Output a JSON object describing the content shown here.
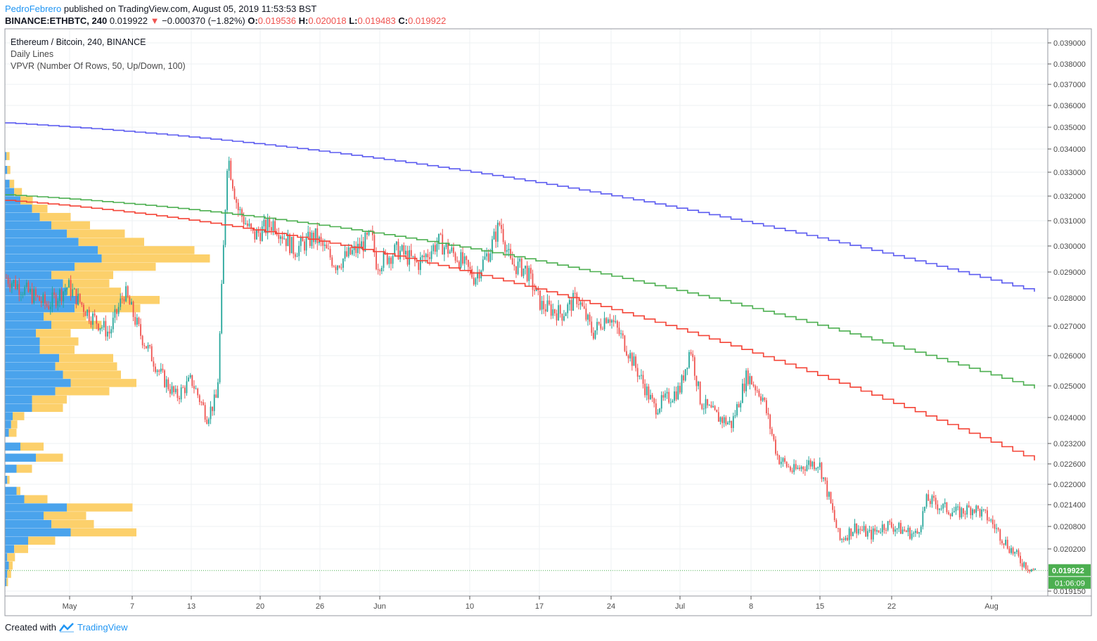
{
  "header": {
    "author": "PedroFebrero",
    "published": "published on TradingView.com, August 05, 2019 11:53:53 BST",
    "symbol": "BINANCE:ETHBTC, 240",
    "last": "0.019922",
    "arrow": "▼",
    "change": "−0.000370 (−1.82%)",
    "o_label": "O:",
    "o_value": "0.019536",
    "h_label": "H:",
    "h_value": "0.020018",
    "l_label": "L:",
    "l_value": "0.019483",
    "c_label": "C:",
    "c_value": "0.019922"
  },
  "legend": {
    "symbol": "Ethereum / Bitcoin, 240, BINANCE",
    "indicator1": "Daily Lines",
    "indicator2": "VPVR (Number Of Rows, 50, Up/Down, 100)"
  },
  "footer": {
    "created": "Created with",
    "brand": "TradingView"
  },
  "price_badge": "0.019922",
  "timer_badge": "01:06:09",
  "colors": {
    "up": "#26a69a",
    "down": "#ef5350",
    "blue_line": "#5b5bf0",
    "green_line": "#4caf50",
    "red_line": "#f44336",
    "vp_up": "#4aa3ec",
    "vp_down": "#fcd06b",
    "badge": "#4caf50"
  },
  "chart_data": {
    "type": "candlestick",
    "y_axis_labels": [
      "0.039000",
      "0.038000",
      "0.037000",
      "0.036000",
      "0.035000",
      "0.034000",
      "0.033000",
      "0.032000",
      "0.031000",
      "0.030000",
      "0.029000",
      "0.028000",
      "0.027000",
      "0.026000",
      "0.025000",
      "0.024000",
      "0.023200",
      "0.022600",
      "0.022000",
      "0.021400",
      "0.020800",
      "0.020200",
      "0.019150"
    ],
    "x_axis_labels": [
      "May",
      "7",
      "13",
      "20",
      "26",
      "Jun",
      "10",
      "17",
      "24",
      "Jul",
      "8",
      "15",
      "22",
      "Aug"
    ],
    "price_range": [
      0.019,
      0.0395
    ],
    "close_path": [
      [
        0.0,
        0.0305
      ],
      [
        0.02,
        0.03
      ],
      [
        0.04,
        0.0295
      ],
      [
        0.06,
        0.0302
      ],
      [
        0.08,
        0.0292
      ],
      [
        0.1,
        0.0285
      ],
      [
        0.115,
        0.03
      ],
      [
        0.13,
        0.0285
      ],
      [
        0.15,
        0.027
      ],
      [
        0.165,
        0.0262
      ],
      [
        0.18,
        0.0268
      ],
      [
        0.195,
        0.0255
      ],
      [
        0.205,
        0.0262
      ],
      [
        0.215,
        0.035
      ],
      [
        0.225,
        0.033
      ],
      [
        0.24,
        0.032
      ],
      [
        0.26,
        0.0325
      ],
      [
        0.28,
        0.0315
      ],
      [
        0.3,
        0.032
      ],
      [
        0.32,
        0.031
      ],
      [
        0.34,
        0.0315
      ],
      [
        0.355,
        0.032
      ],
      [
        0.36,
        0.031
      ],
      [
        0.38,
        0.0315
      ],
      [
        0.4,
        0.031
      ],
      [
        0.42,
        0.0318
      ],
      [
        0.44,
        0.0312
      ],
      [
        0.455,
        0.0305
      ],
      [
        0.47,
        0.0315
      ],
      [
        0.48,
        0.0325
      ],
      [
        0.49,
        0.031
      ],
      [
        0.505,
        0.0308
      ],
      [
        0.52,
        0.0295
      ],
      [
        0.54,
        0.0292
      ],
      [
        0.555,
        0.0298
      ],
      [
        0.57,
        0.0285
      ],
      [
        0.585,
        0.0292
      ],
      [
        0.6,
        0.0282
      ],
      [
        0.615,
        0.027
      ],
      [
        0.63,
        0.0258
      ],
      [
        0.645,
        0.0262
      ],
      [
        0.655,
        0.0265
      ],
      [
        0.665,
        0.028
      ],
      [
        0.675,
        0.026
      ],
      [
        0.69,
        0.0255
      ],
      [
        0.705,
        0.0252
      ],
      [
        0.72,
        0.027
      ],
      [
        0.735,
        0.0262
      ],
      [
        0.75,
        0.024
      ],
      [
        0.765,
        0.0235
      ],
      [
        0.78,
        0.0238
      ],
      [
        0.79,
        0.0238
      ],
      [
        0.8,
        0.0225
      ],
      [
        0.81,
        0.021
      ],
      [
        0.825,
        0.0215
      ],
      [
        0.84,
        0.0212
      ],
      [
        0.855,
        0.0216
      ],
      [
        0.87,
        0.0214
      ],
      [
        0.885,
        0.0212
      ],
      [
        0.895,
        0.0225
      ],
      [
        0.91,
        0.0222
      ],
      [
        0.925,
        0.022
      ],
      [
        0.94,
        0.0222
      ],
      [
        0.955,
        0.0218
      ],
      [
        0.97,
        0.021
      ],
      [
        0.985,
        0.0203
      ],
      [
        1.0,
        0.0199
      ]
    ],
    "series": [
      {
        "color": "#5b5bf0",
        "start": 0.0361,
        "end": 0.03
      },
      {
        "color": "#4caf50",
        "start": 0.0335,
        "end": 0.0265
      },
      {
        "color": "#f44336",
        "start": 0.0333,
        "end": 0.0239
      }
    ],
    "volume_profile": [
      [
        0.0349,
        0.002,
        0.004
      ],
      [
        0.0344,
        0.003,
        0.004
      ],
      [
        0.0339,
        0.006,
        0.006
      ],
      [
        0.0336,
        0.012,
        0.01
      ],
      [
        0.0333,
        0.02,
        0.016
      ],
      [
        0.033,
        0.035,
        0.02
      ],
      [
        0.0327,
        0.045,
        0.04
      ],
      [
        0.0324,
        0.06,
        0.05
      ],
      [
        0.0321,
        0.08,
        0.075
      ],
      [
        0.0318,
        0.095,
        0.085
      ],
      [
        0.0315,
        0.12,
        0.125
      ],
      [
        0.0312,
        0.125,
        0.14
      ],
      [
        0.0309,
        0.09,
        0.105
      ],
      [
        0.0306,
        0.06,
        0.08
      ],
      [
        0.0303,
        0.075,
        0.06
      ],
      [
        0.03,
        0.08,
        0.07
      ],
      [
        0.0297,
        0.095,
        0.105
      ],
      [
        0.0294,
        0.09,
        0.085
      ],
      [
        0.0291,
        0.05,
        0.055
      ],
      [
        0.0288,
        0.06,
        0.065
      ],
      [
        0.0285,
        0.04,
        0.045
      ],
      [
        0.0282,
        0.045,
        0.05
      ],
      [
        0.0279,
        0.045,
        0.045
      ],
      [
        0.0276,
        0.07,
        0.07
      ],
      [
        0.0273,
        0.065,
        0.08
      ],
      [
        0.027,
        0.075,
        0.075
      ],
      [
        0.0267,
        0.085,
        0.085
      ],
      [
        0.0264,
        0.065,
        0.07
      ],
      [
        0.0261,
        0.035,
        0.045
      ],
      [
        0.0258,
        0.035,
        0.04
      ],
      [
        0.0255,
        0.01,
        0.015
      ],
      [
        0.0252,
        0.008,
        0.008
      ],
      [
        0.0249,
        0.005,
        0.01
      ],
      [
        0.0244,
        0.02,
        0.03
      ],
      [
        0.024,
        0.04,
        0.035
      ],
      [
        0.0236,
        0.015,
        0.02
      ],
      [
        0.0232,
        0.003,
        0.003
      ],
      [
        0.0228,
        0.015,
        0.005
      ],
      [
        0.0225,
        0.025,
        0.03
      ],
      [
        0.0222,
        0.08,
        0.085
      ],
      [
        0.0219,
        0.05,
        0.055
      ],
      [
        0.0216,
        0.06,
        0.055
      ],
      [
        0.0213,
        0.085,
        0.085
      ],
      [
        0.021,
        0.03,
        0.035
      ],
      [
        0.0207,
        0.012,
        0.018
      ],
      [
        0.0204,
        0.003,
        0.01
      ],
      [
        0.0201,
        0.005,
        0.005
      ],
      [
        0.0198,
        0.003,
        0.005
      ],
      [
        0.0195,
        0.002,
        0.002
      ]
    ],
    "last_price": 0.019922
  }
}
